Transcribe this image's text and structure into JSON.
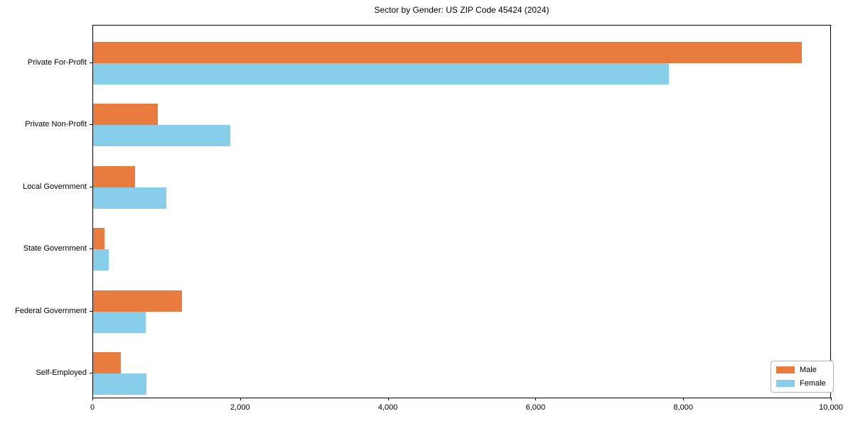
{
  "chart_data": {
    "type": "bar",
    "orientation": "horizontal",
    "title": "Sector by Gender: US ZIP Code 45424 (2024)",
    "categories": [
      "Private For-Profit",
      "Private Non-Profit",
      "Local Government",
      "State Government",
      "Federal Government",
      "Self-Employed"
    ],
    "series": [
      {
        "name": "Male",
        "color": "#e87c3e",
        "values": [
          9600,
          880,
          570,
          150,
          1200,
          380
        ]
      },
      {
        "name": "Female",
        "color": "#87ceeb",
        "values": [
          7800,
          1860,
          990,
          210,
          710,
          720
        ]
      }
    ],
    "xlim": [
      0,
      10000
    ],
    "x_ticks": [
      0,
      2000,
      4000,
      6000,
      8000,
      10000
    ],
    "x_tick_labels": [
      "0",
      "2,000",
      "4,000",
      "6,000",
      "8,000",
      "10,000"
    ],
    "grid": false,
    "legend": {
      "position": "lower right",
      "entries": [
        "Male",
        "Female"
      ]
    }
  }
}
